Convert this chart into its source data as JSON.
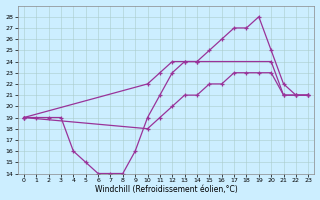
{
  "xlabel": "Windchill (Refroidissement éolien,°C)",
  "bg_color": "#cceeff",
  "line_color": "#993399",
  "xlim": [
    -0.5,
    23.5
  ],
  "ylim": [
    14,
    29
  ],
  "xticks": [
    0,
    1,
    2,
    3,
    4,
    5,
    6,
    7,
    8,
    9,
    10,
    11,
    12,
    13,
    14,
    15,
    16,
    17,
    18,
    19,
    20,
    21,
    22,
    23
  ],
  "yticks": [
    14,
    15,
    16,
    17,
    18,
    19,
    20,
    21,
    22,
    23,
    24,
    25,
    26,
    27,
    28
  ],
  "line1_x": [
    0,
    1,
    2,
    3,
    4,
    5,
    6,
    7,
    8,
    9,
    10,
    11,
    12,
    13,
    14,
    20,
    21,
    22,
    23
  ],
  "line1_y": [
    19,
    19,
    19,
    19,
    16,
    15,
    14,
    14,
    14,
    16,
    19,
    21,
    23,
    24,
    24,
    24,
    21,
    21,
    21
  ],
  "line2_x": [
    0,
    10,
    11,
    12,
    13,
    14,
    15,
    16,
    17,
    18,
    19,
    20,
    21,
    22,
    23
  ],
  "line2_y": [
    19,
    22,
    23,
    24,
    24,
    24,
    25,
    26,
    27,
    27,
    28,
    25,
    22,
    21,
    21
  ],
  "line3_x": [
    0,
    10,
    11,
    12,
    13,
    14,
    15,
    16,
    17,
    18,
    19,
    20,
    21,
    22,
    23
  ],
  "line3_y": [
    19,
    18,
    19,
    20,
    21,
    21,
    22,
    22,
    23,
    23,
    23,
    23,
    21,
    21,
    21
  ]
}
